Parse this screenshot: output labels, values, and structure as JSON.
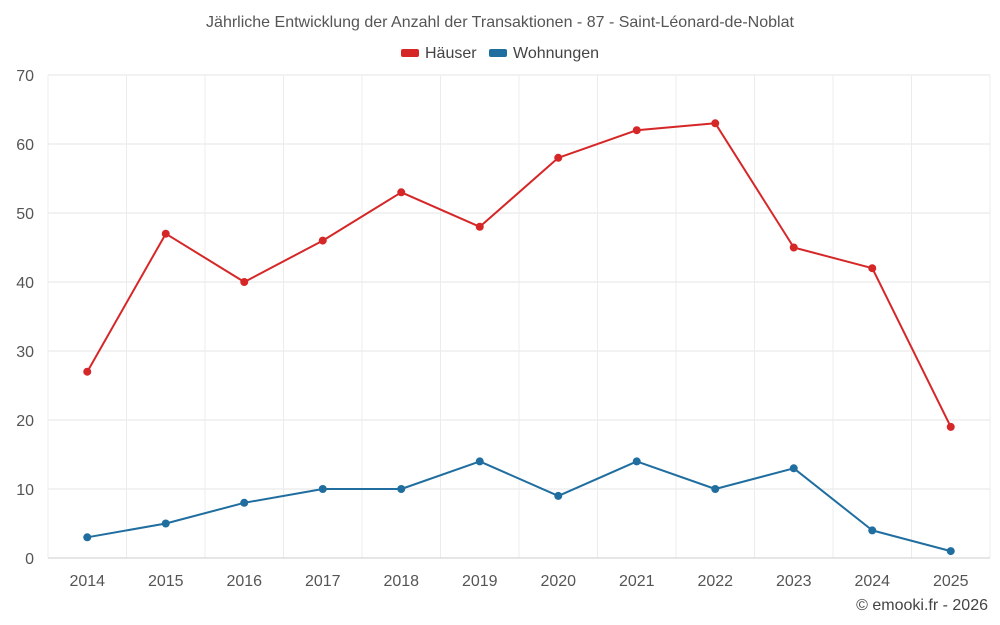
{
  "chart_data": {
    "type": "line",
    "title": "Jährliche Entwicklung der Anzahl der Transaktionen - 87 - Saint-Léonard-de-Noblat",
    "categories": [
      "2014",
      "2015",
      "2016",
      "2017",
      "2018",
      "2019",
      "2020",
      "2021",
      "2022",
      "2023",
      "2024",
      "2025"
    ],
    "series": [
      {
        "name": "Häuser",
        "color": "#d62728",
        "values": [
          27,
          47,
          40,
          46,
          53,
          48,
          58,
          62,
          63,
          45,
          42,
          19
        ]
      },
      {
        "name": "Wohnungen",
        "color": "#1f6e9f",
        "values": [
          3,
          5,
          8,
          10,
          10,
          14,
          9,
          14,
          10,
          13,
          4,
          1
        ]
      }
    ],
    "ylim": [
      0,
      70
    ],
    "yticks": [
      0,
      10,
      20,
      30,
      40,
      50,
      60,
      70
    ],
    "grid": true,
    "legend_position": "top-center",
    "xlabel": "",
    "ylabel": ""
  },
  "credit": "© emooki.fr - 2026"
}
